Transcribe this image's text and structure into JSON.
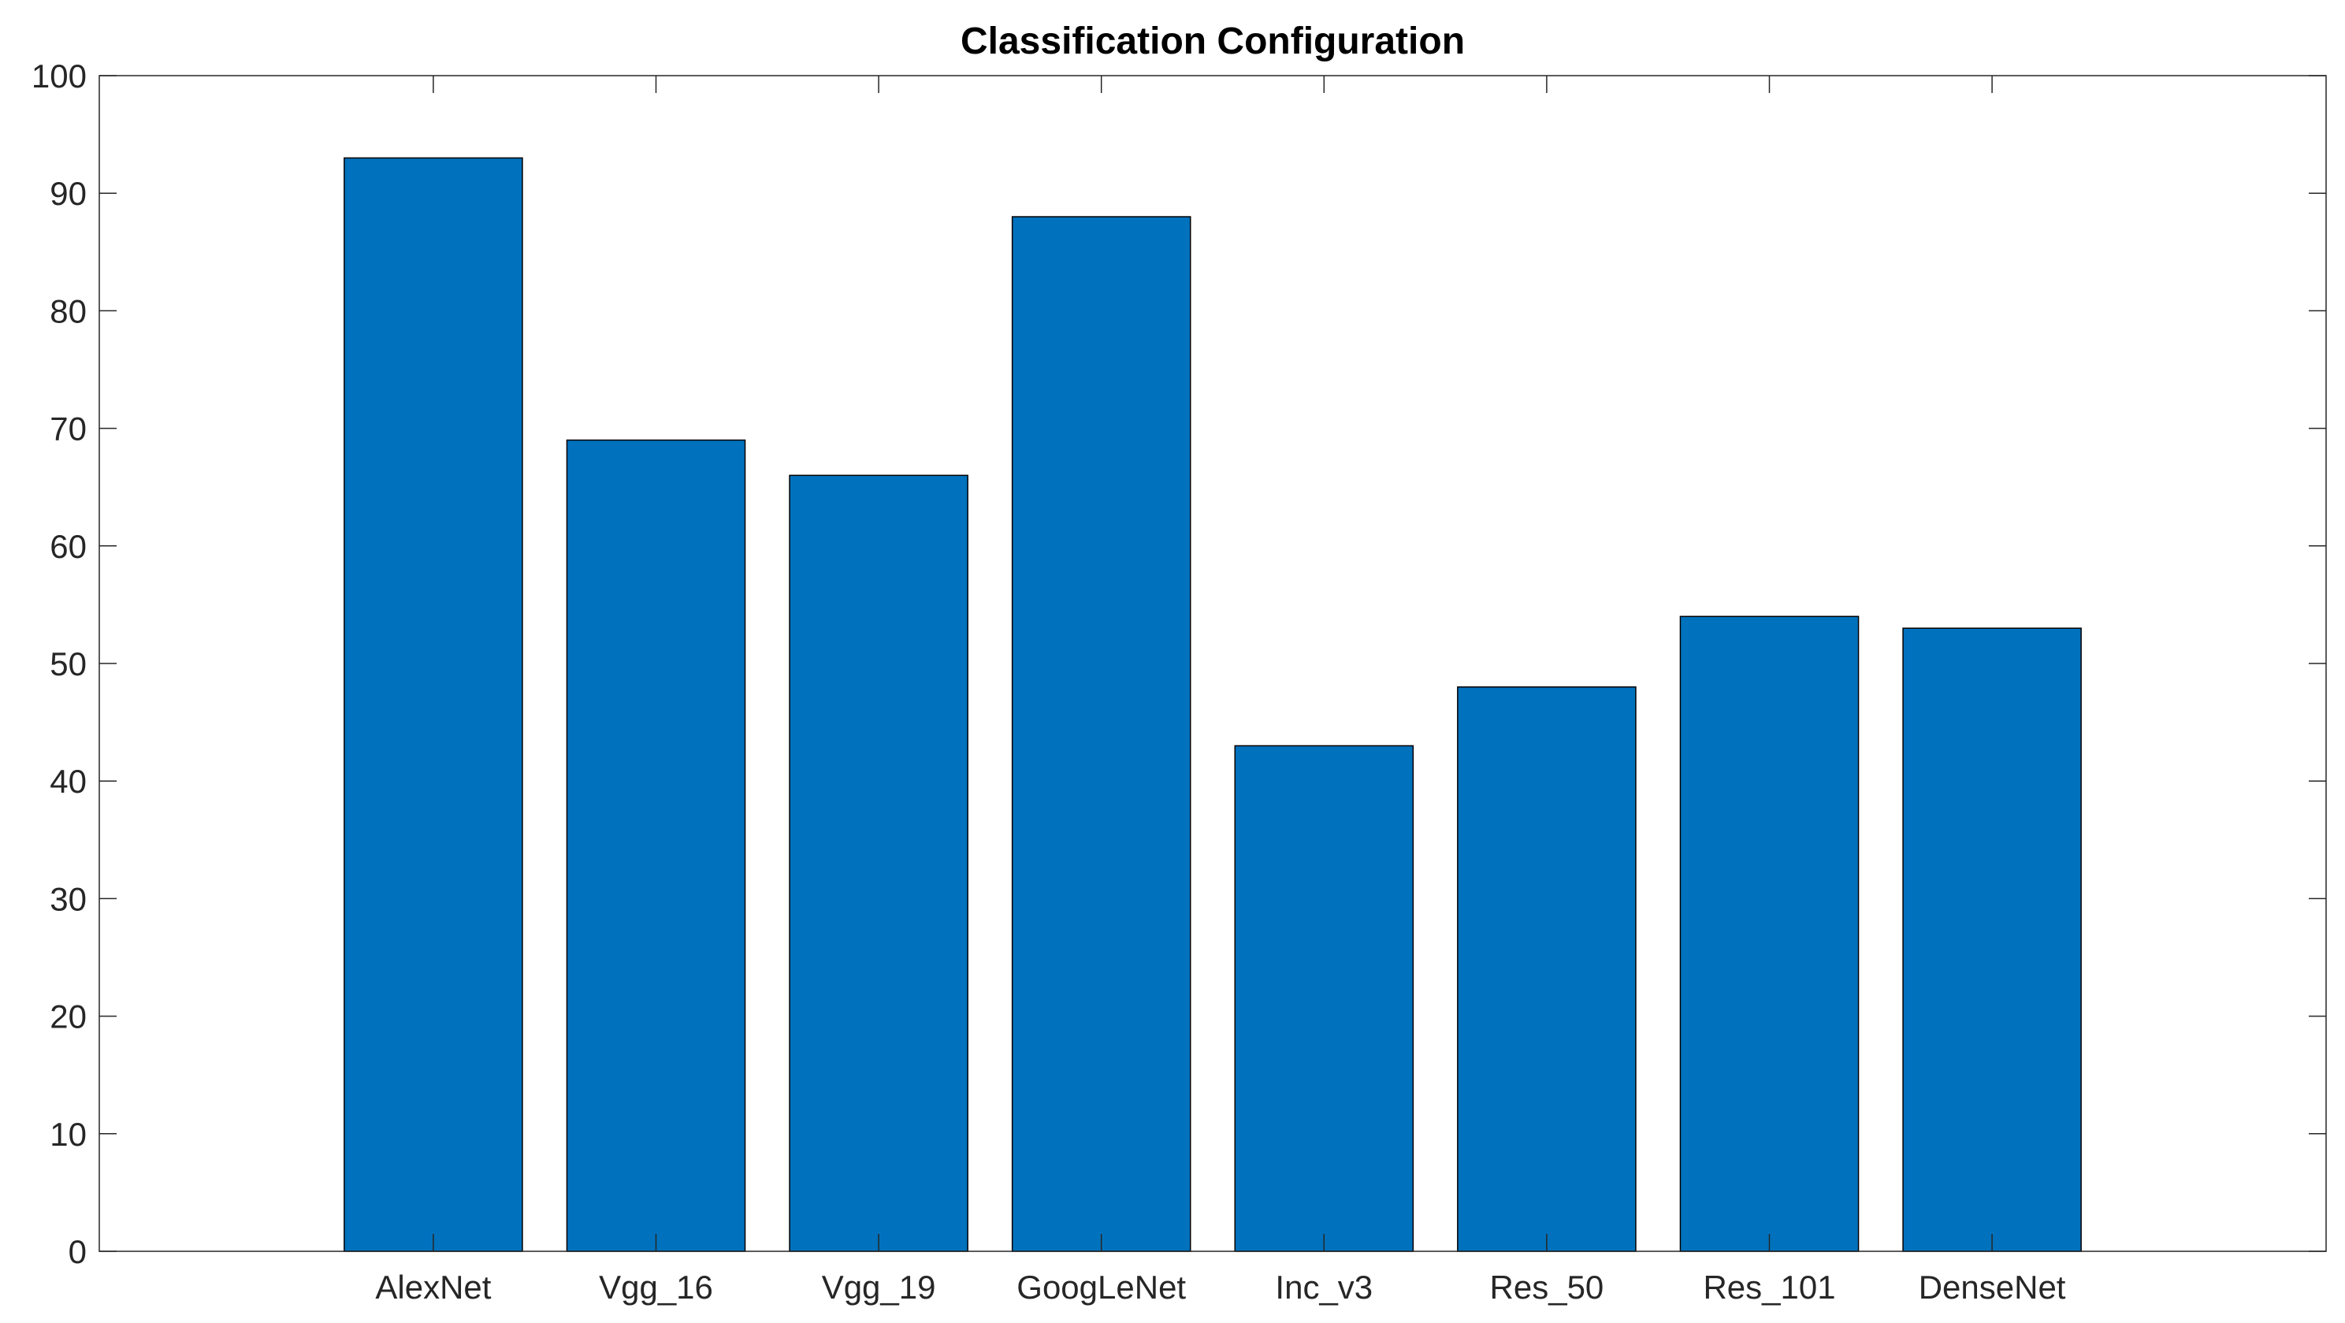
{
  "chart_data": {
    "type": "bar",
    "title": "Classification Configuration",
    "xlabel": "",
    "ylabel": "",
    "categories": [
      "AlexNet",
      "Vgg_16",
      "Vgg_19",
      "GoogLeNet",
      "Inc_v3",
      "Res_50",
      "Res_101",
      "DenseNet"
    ],
    "values": [
      93,
      69,
      66,
      88,
      43,
      48,
      54,
      53
    ],
    "ylim": [
      0,
      100
    ],
    "yticks": [
      0,
      10,
      20,
      30,
      40,
      50,
      60,
      70,
      80,
      90,
      100
    ],
    "ytick_labels": [
      "0",
      "10",
      "20",
      "30",
      "40",
      "50",
      "60",
      "70",
      "80",
      "90",
      "100"
    ],
    "grid": false,
    "legend": "none",
    "colors": {
      "bar": "#0072bd",
      "bar_edge": "#000000",
      "axes": "#262626",
      "background": "#ffffff"
    }
  }
}
